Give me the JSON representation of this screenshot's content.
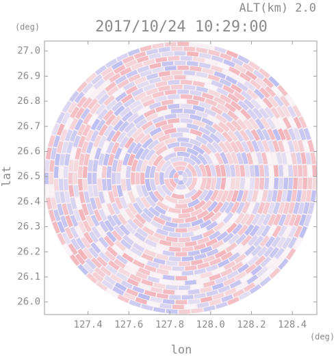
{
  "chart_data": {
    "type": "radar-field",
    "title": "2017/10/24 10:29:00",
    "subtitle": "ALT(km) 2.0",
    "x_label": "lon",
    "y_label": "lat",
    "x_unit": "(deg)",
    "y_unit": "(deg)",
    "xlim": [
      127.187,
      128.52
    ],
    "ylim": [
      25.95,
      27.04
    ],
    "xticks": [
      127.4,
      127.6,
      127.8,
      {
        "value": 128.0,
        "label": "128.0"
      },
      128.2,
      128.4
    ],
    "yticks": [
      {
        "value": 26.0,
        "label": "26.0"
      },
      26.1,
      26.2,
      26.3,
      26.4,
      26.5,
      26.6,
      26.7,
      26.8,
      26.9,
      {
        "value": 27.0,
        "label": "27.0"
      }
    ]
  }
}
